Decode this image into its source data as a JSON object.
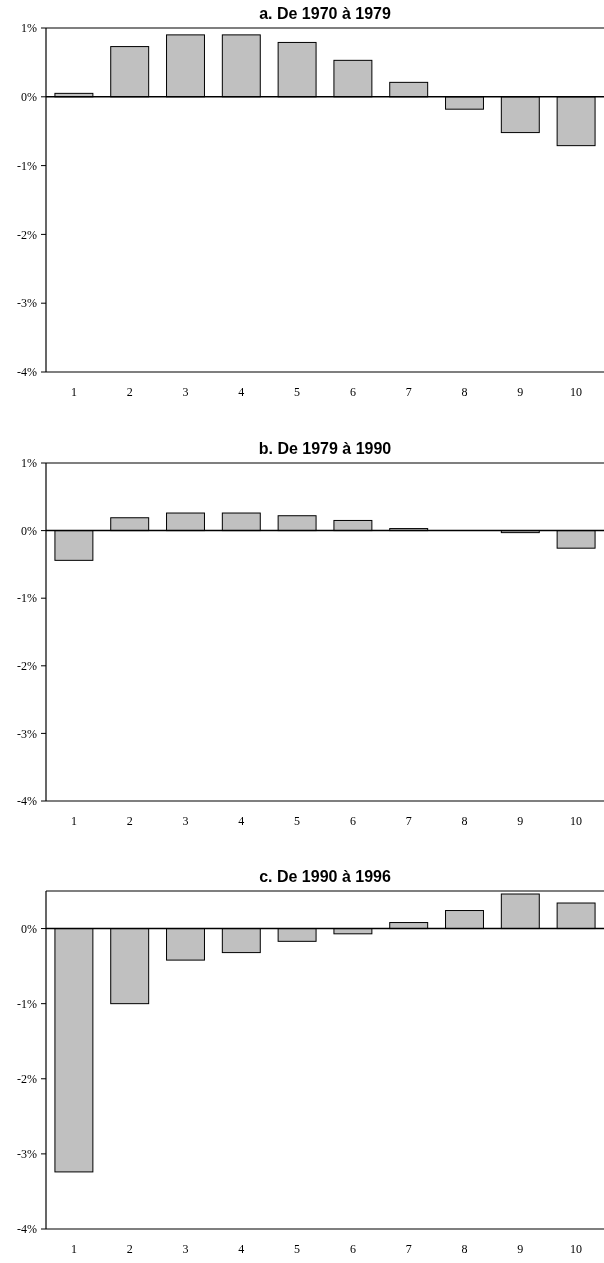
{
  "chart_data": [
    {
      "type": "bar",
      "title": "a. De 1970 à 1979",
      "categories": [
        "1",
        "2",
        "3",
        "4",
        "5",
        "6",
        "7",
        "8",
        "9",
        "10"
      ],
      "values": [
        0.05,
        0.73,
        0.9,
        0.9,
        0.79,
        0.53,
        0.21,
        -0.18,
        -0.52,
        -0.71
      ],
      "color": "#c0c0c0",
      "ylim": [
        -4,
        1
      ],
      "yticks": [
        {
          "value": 1,
          "label": "1%"
        },
        {
          "value": 0,
          "label": "0%"
        },
        {
          "value": -1,
          "label": "-1%"
        },
        {
          "value": -2,
          "label": "-2%"
        },
        {
          "value": -3,
          "label": "-3%"
        },
        {
          "value": -4,
          "label": "-4%"
        }
      ]
    },
    {
      "type": "bar",
      "title": "b. De 1979 à 1990",
      "categories": [
        "1",
        "2",
        "3",
        "4",
        "5",
        "6",
        "7",
        "8",
        "9",
        "10"
      ],
      "values": [
        -0.44,
        0.19,
        0.26,
        0.26,
        0.22,
        0.15,
        0.03,
        null,
        -0.03,
        -0.26
      ],
      "color": "#c0c0c0",
      "ylim": [
        -4,
        1
      ],
      "yticks": [
        {
          "value": 1,
          "label": "1%"
        },
        {
          "value": 0,
          "label": "0%"
        },
        {
          "value": -1,
          "label": "-1%"
        },
        {
          "value": -2,
          "label": "-2%"
        },
        {
          "value": -3,
          "label": "-3%"
        },
        {
          "value": -4,
          "label": "-4%"
        }
      ]
    },
    {
      "type": "bar",
      "title": "c. De 1990 à 1996",
      "categories": [
        "1",
        "2",
        "3",
        "4",
        "5",
        "6",
        "7",
        "8",
        "9",
        "10"
      ],
      "values": [
        -3.24,
        -1.0,
        -0.42,
        -0.32,
        -0.17,
        -0.07,
        0.08,
        0.24,
        0.46,
        0.34
      ],
      "color": "#c0c0c0",
      "ylim": [
        -4,
        0.5
      ],
      "yticks": [
        {
          "value": 0,
          "label": "0%"
        },
        {
          "value": -1,
          "label": "-1%"
        },
        {
          "value": -2,
          "label": "-2%"
        },
        {
          "value": -3,
          "label": "-3%"
        },
        {
          "value": -4,
          "label": "-4%"
        }
      ]
    }
  ]
}
